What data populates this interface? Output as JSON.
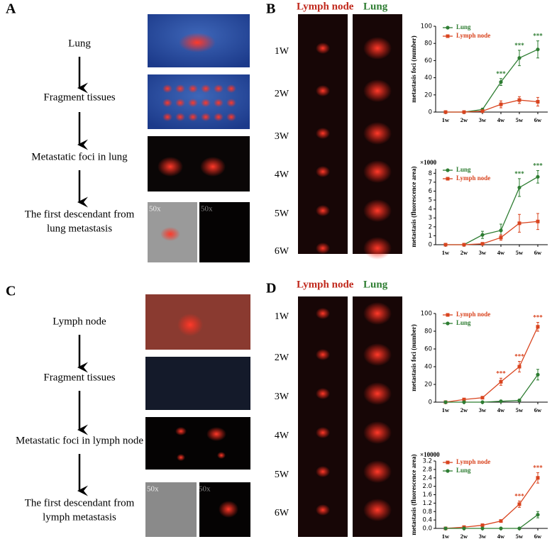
{
  "panels": {
    "A": {
      "label": "A",
      "steps": [
        "Lung",
        "Fragment tissues",
        "Metastatic foci in lung",
        "The first descendant from",
        "lung metastasis"
      ],
      "photo_labels": [
        "50x",
        "50x"
      ]
    },
    "B": {
      "label": "B",
      "header": [
        "Lymph node",
        "Lung"
      ],
      "weeks": [
        "1W",
        "2W",
        "3W",
        "4W",
        "5W",
        "6W"
      ]
    },
    "C": {
      "label": "C",
      "steps": [
        "Lymph node",
        "Fragment tissues",
        "Metastatic foci in lymph node",
        "The first descendant from",
        "lymph metastasis"
      ],
      "photo_labels": [
        "50x",
        "50x"
      ]
    },
    "D": {
      "label": "D",
      "header": [
        "Lymph node",
        "Lung"
      ],
      "weeks": [
        "1W",
        "2W",
        "3W",
        "4W",
        "5W",
        "6W"
      ]
    }
  },
  "chart_data": [
    {
      "type": "line",
      "ylabel": "metastasis foci (number)",
      "legend": "top-left",
      "categories": [
        "1w",
        "2w",
        "3w",
        "4w",
        "5w",
        "6w"
      ],
      "ylim": [
        0,
        100
      ],
      "yticks": [
        0,
        20,
        40,
        60,
        80,
        100
      ],
      "series": [
        {
          "name": "Lung",
          "color": "#2e7d32",
          "marker": "circle",
          "values": [
            0,
            0,
            3,
            35,
            63,
            73
          ],
          "errors": [
            0,
            0,
            1,
            4,
            9,
            10
          ]
        },
        {
          "name": "Lymph node",
          "color": "#d9441f",
          "marker": "square",
          "values": [
            0,
            0,
            1,
            9,
            14,
            12
          ],
          "errors": [
            0,
            0,
            1,
            4,
            4,
            5
          ]
        }
      ],
      "annotations": [
        {
          "category": "4w",
          "series": "Lung",
          "text": "***"
        },
        {
          "category": "5w",
          "series": "Lung",
          "text": "***"
        },
        {
          "category": "6w",
          "series": "Lung",
          "text": "***"
        }
      ]
    },
    {
      "type": "line",
      "ylabel": "metastasis (fluorescence area)",
      "multiplier": "×1000",
      "legend": "top-left",
      "categories": [
        "1w",
        "2w",
        "3w",
        "4w",
        "5w",
        "6w"
      ],
      "ylim": [
        0,
        8.5
      ],
      "yticks": [
        0,
        1,
        2,
        3,
        4,
        5,
        6,
        7,
        8
      ],
      "series": [
        {
          "name": "Lung",
          "color": "#2e7d32",
          "marker": "circle",
          "values": [
            0,
            0,
            1.1,
            1.6,
            6.4,
            7.6
          ],
          "errors": [
            0,
            0,
            0.4,
            0.7,
            1.0,
            0.7
          ]
        },
        {
          "name": "Lymph node",
          "color": "#d9441f",
          "marker": "square",
          "values": [
            0,
            0,
            0.1,
            0.8,
            2.4,
            2.6
          ],
          "errors": [
            0,
            0,
            0.1,
            0.3,
            1.0,
            0.9
          ]
        }
      ],
      "annotations": [
        {
          "category": "5w",
          "series": "Lung",
          "text": "***"
        },
        {
          "category": "6w",
          "series": "Lung",
          "text": "***"
        }
      ]
    },
    {
      "type": "line",
      "ylabel": "metastasis foci (number)",
      "legend": "top-left",
      "categories": [
        "1w",
        "2w",
        "3w",
        "4w",
        "5w",
        "6w"
      ],
      "ylim": [
        0,
        100
      ],
      "yticks": [
        0,
        20,
        40,
        60,
        80,
        100
      ],
      "series": [
        {
          "name": "Lymph node",
          "color": "#d9441f",
          "marker": "square",
          "values": [
            0,
            3,
            5,
            23,
            40,
            85
          ],
          "errors": [
            0,
            1,
            1,
            4,
            6,
            5
          ]
        },
        {
          "name": "Lung",
          "color": "#2e7d32",
          "marker": "circle",
          "values": [
            0,
            0,
            0,
            1,
            2,
            31
          ],
          "errors": [
            0,
            0,
            0,
            1,
            1,
            6
          ]
        }
      ],
      "annotations": [
        {
          "category": "4w",
          "series": "Lymph node",
          "text": "***"
        },
        {
          "category": "5w",
          "series": "Lymph node",
          "text": "***"
        },
        {
          "category": "6w",
          "series": "Lymph node",
          "text": "***"
        }
      ]
    },
    {
      "type": "line",
      "ylabel": "metastasis (fluorescence area)",
      "multiplier": "×10000",
      "legend": "top-left",
      "categories": [
        "1w",
        "2w",
        "3w",
        "4w",
        "5w",
        "6w"
      ],
      "ylim": [
        0,
        3.2
      ],
      "yticks": [
        {
          "value": 0,
          "label": "0.0"
        },
        0.4,
        0.8,
        1.2,
        1.6,
        {
          "value": 2,
          "label": "2.0"
        },
        2.4,
        2.8,
        3.2
      ],
      "series": [
        {
          "name": "Lymph node",
          "color": "#d9441f",
          "marker": "square",
          "values": [
            0,
            0.06,
            0.15,
            0.35,
            1.15,
            2.4
          ],
          "errors": [
            0,
            0.02,
            0.03,
            0.03,
            0.15,
            0.25
          ]
        },
        {
          "name": "Lung",
          "color": "#2e7d32",
          "marker": "circle",
          "values": [
            0,
            0,
            0,
            0,
            0,
            0.65
          ],
          "errors": [
            0,
            0,
            0,
            0,
            0,
            0.15
          ]
        }
      ],
      "annotations": [
        {
          "category": "5w",
          "series": "Lymph node",
          "text": "***"
        },
        {
          "category": "6w",
          "series": "Lymph node",
          "text": "***"
        }
      ]
    }
  ]
}
